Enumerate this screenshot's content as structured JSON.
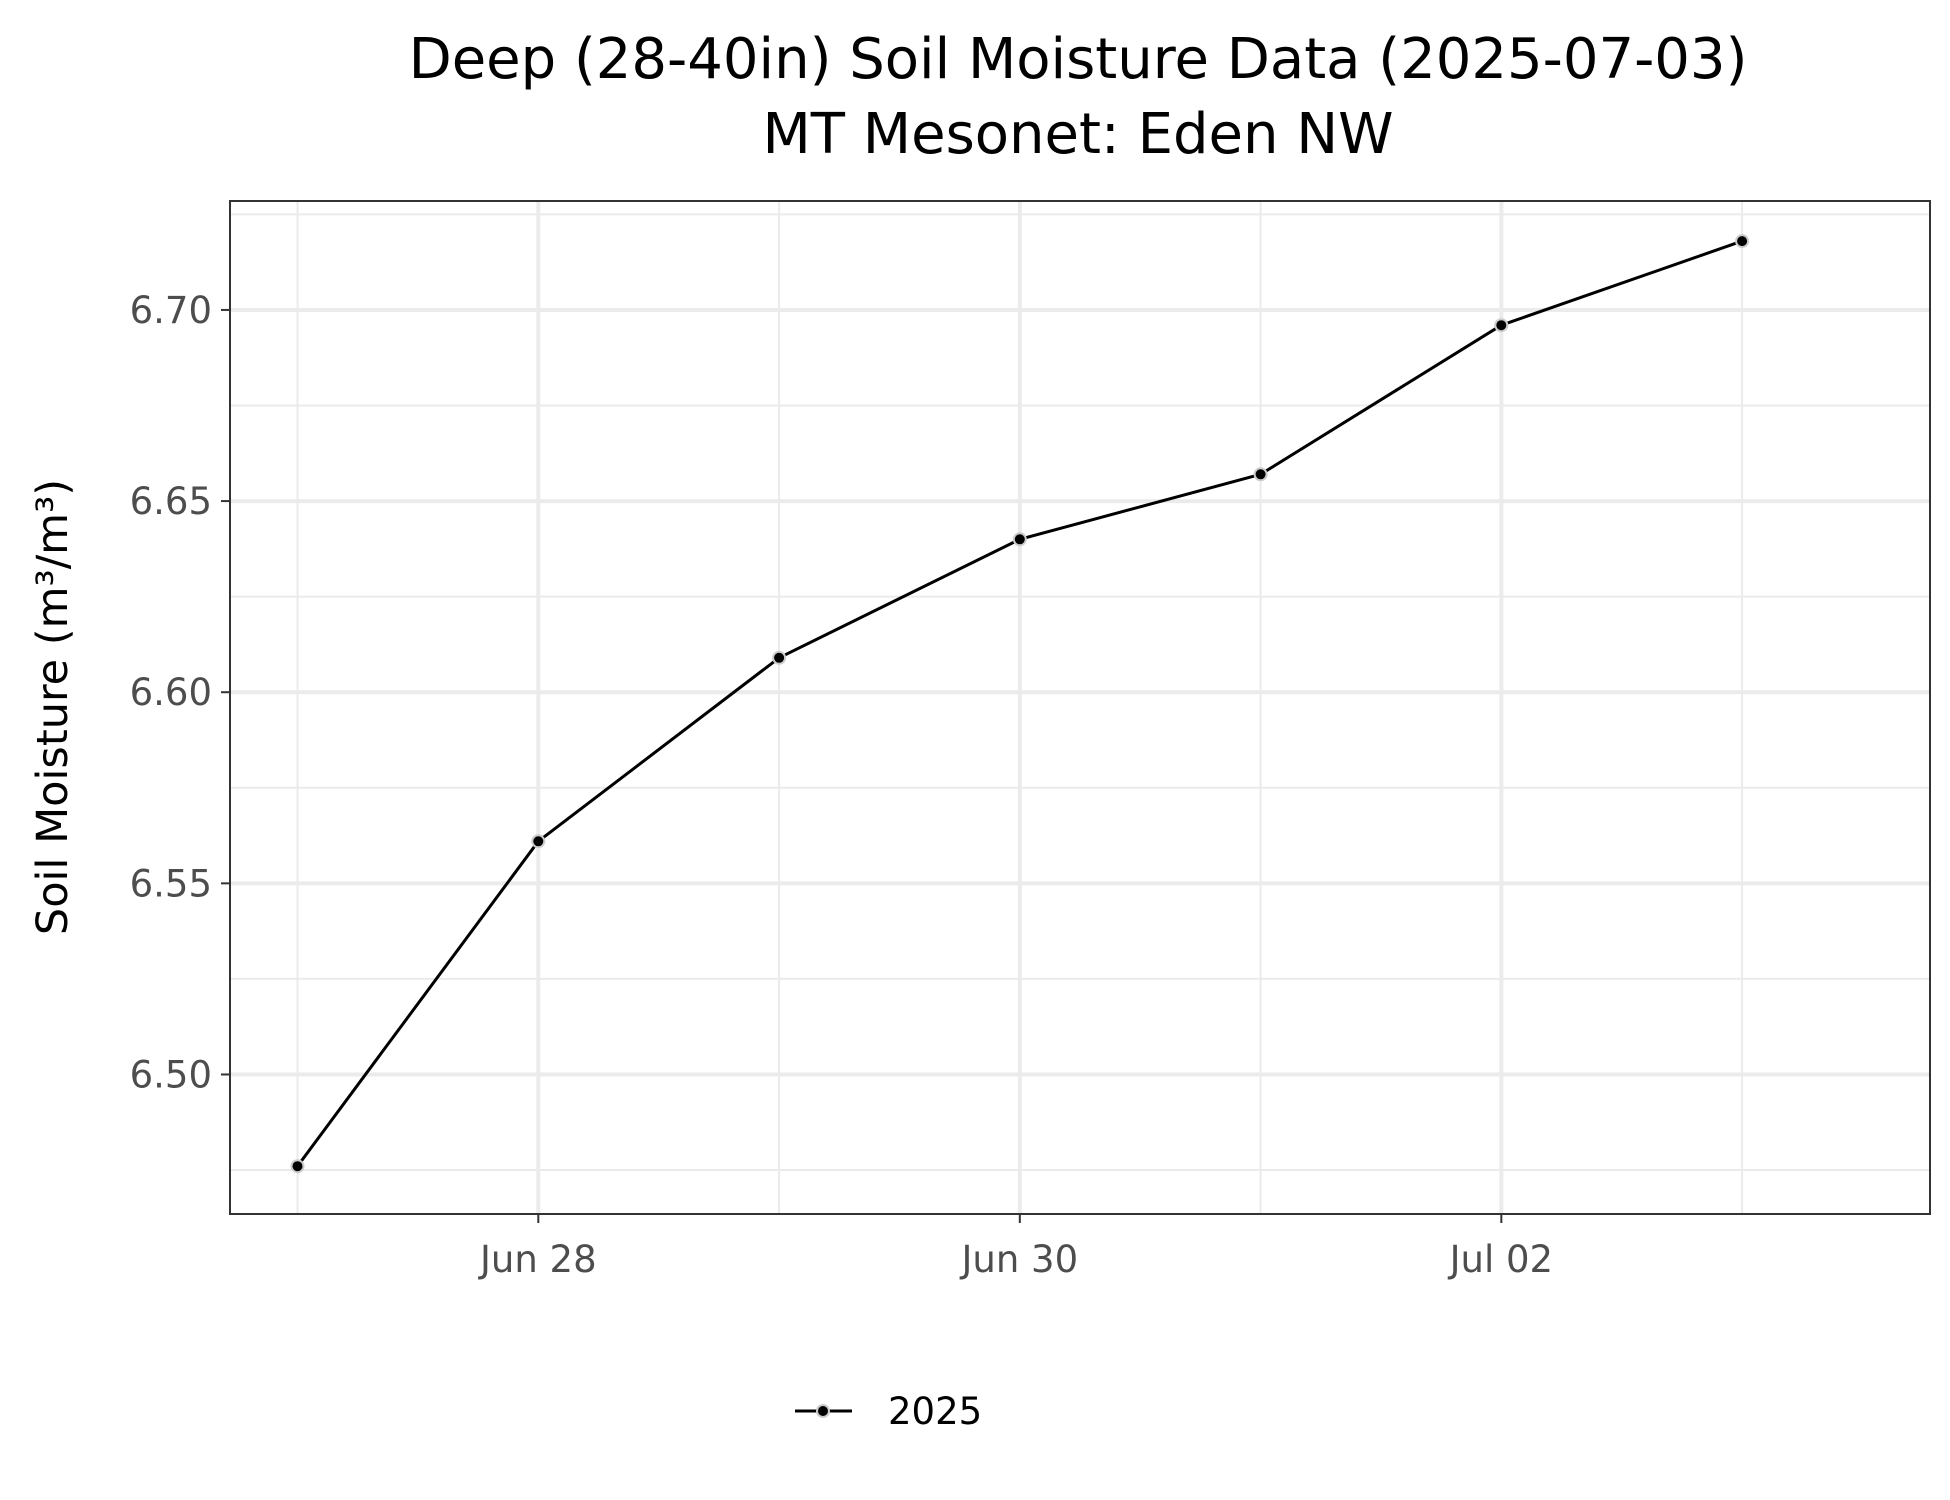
{
  "chart_data": {
    "type": "line",
    "title": "Deep (28-40in) Soil Moisture Data (2025-07-03)",
    "subtitle": "MT Mesonet: Eden NW",
    "xlabel": "",
    "ylabel": "Soil Moisture (m³/m³)",
    "x_tick_labels": [
      {
        "date": "2025-06-28",
        "label": "Jun 28"
      },
      {
        "date": "2025-06-30",
        "label": "Jun 30"
      },
      {
        "date": "2025-07-02",
        "label": "Jul 02"
      }
    ],
    "y_ticks": [
      6.5,
      6.55,
      6.6,
      6.65,
      6.7
    ],
    "y_tick_labels": [
      "6.50",
      "6.55",
      "6.60",
      "6.65",
      "6.70"
    ],
    "xlim": [
      "2025-06-26T17:16:00",
      "2025-07-03T18:44:00"
    ],
    "ylim": [
      6.4635,
      6.7285
    ],
    "grid": true,
    "legend_position": "bottom",
    "series": [
      {
        "name": "2025",
        "color": "#000000",
        "x": [
          "2025-06-27",
          "2025-06-28",
          "2025-06-29",
          "2025-06-30",
          "2025-07-01",
          "2025-07-02",
          "2025-07-03"
        ],
        "y": [
          6.476,
          6.561,
          6.609,
          6.64,
          6.657,
          6.696,
          6.718
        ]
      }
    ]
  }
}
